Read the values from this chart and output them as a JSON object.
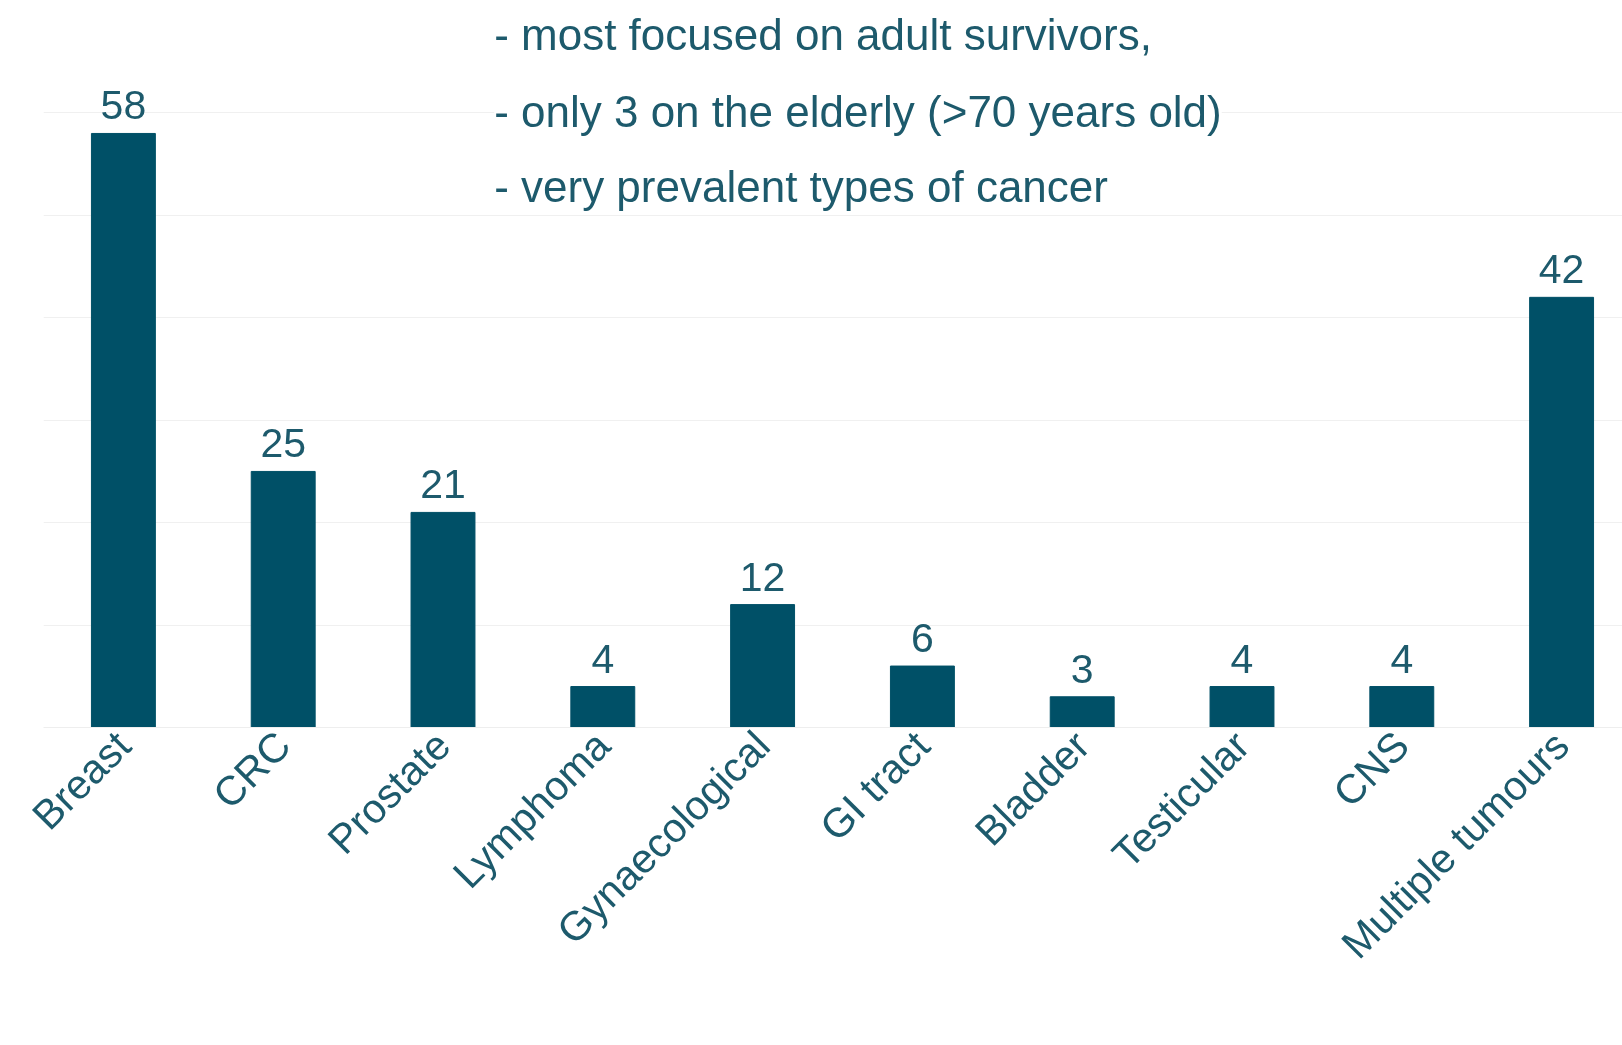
{
  "chart_data": {
    "type": "bar",
    "categories": [
      "Breast",
      "CRC",
      "Prostate",
      "Lymphoma",
      "Gynaecological",
      "GI tract",
      "Bladder",
      "Testicular",
      "CNS",
      "Multiple tumours"
    ],
    "values": [
      58,
      25,
      21,
      4,
      12,
      6,
      3,
      4,
      4,
      42
    ],
    "color": "#005067",
    "yticks": [
      {
        "value": 0,
        "label": null
      },
      {
        "value": 10,
        "label": null
      },
      {
        "value": 20,
        "label": null
      },
      {
        "value": 30,
        "label": null
      },
      {
        "value": 40,
        "label": null
      },
      {
        "value": 50,
        "label": null
      },
      {
        "value": 60,
        "label": null
      }
    ],
    "grid": "y",
    "data_labels": true,
    "tick_labels": "x",
    "annotations": [
      "- most focused on adult survivors,",
      "- only 3 on the elderly (>70 years old)",
      "- very prevalent types of cancer"
    ]
  }
}
